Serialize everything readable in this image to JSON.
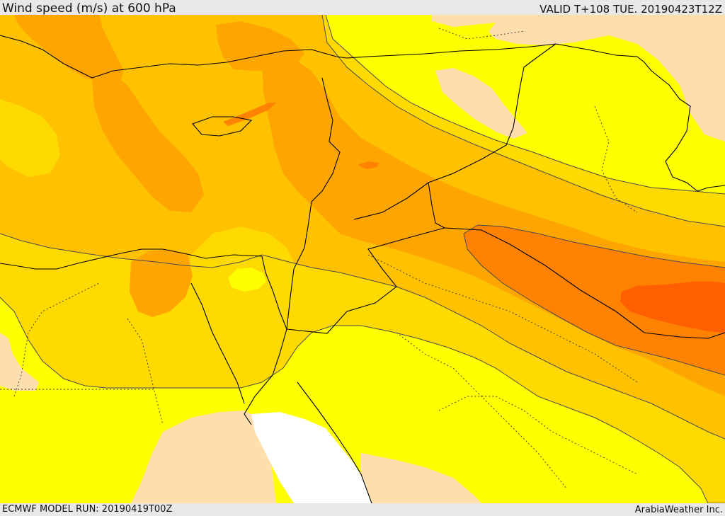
{
  "header": {
    "title": "Wind speed (m/s) at 600 hPa",
    "valid": "VALID T+108 TUE. 20190423T12Z"
  },
  "footer": {
    "model_run": "ECMWF MODEL RUN: 20190419T00Z",
    "credit": "ArabiaWeather Inc."
  },
  "colors": {
    "band_lt10": "#FFFFFF",
    "band_10_15": "#FFDEAD",
    "band_15_20": "#FFFF00",
    "band_20_25": "#FFDA00",
    "band_25_30": "#FFC100",
    "band_30_35": "#FFA500",
    "band_35_40": "#FF8200",
    "band_gt40": "#FF5F00",
    "contour_line": "#4a4a4a",
    "border_line": "#000000"
  }
}
